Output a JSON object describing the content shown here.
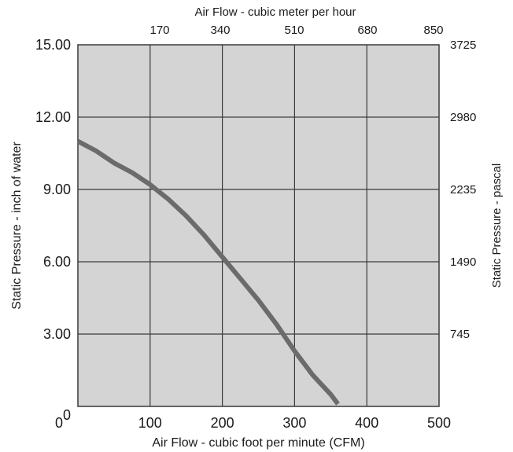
{
  "chart_data": {
    "type": "line",
    "title": "",
    "xlabel": "Air Flow - cubic foot per minute (CFM)",
    "x2label": "Air Flow - cubic meter per hour",
    "ylabel": "Static Pressure - inch of water",
    "y2label": "Static Pressure - pascal",
    "xlim": [
      0,
      500
    ],
    "ylim": [
      0,
      15
    ],
    "grid": true,
    "x_ticks": [
      "0",
      "100",
      "200",
      "300",
      "400",
      "500"
    ],
    "x2_ticks": [
      "170",
      "340",
      "510",
      "680",
      "850"
    ],
    "y_ticks": [
      "0",
      "3.00",
      "6.00",
      "9.00",
      "12.00",
      "15.00"
    ],
    "y2_ticks": [
      "745",
      "1490",
      "2235",
      "2980",
      "3725"
    ],
    "series": [
      {
        "x": [
          0,
          25,
          50,
          75,
          100,
          125,
          150,
          175,
          200,
          225,
          250,
          275,
          300,
          325,
          350,
          360
        ],
        "y": [
          11.0,
          10.6,
          10.1,
          9.7,
          9.2,
          8.6,
          7.9,
          7.1,
          6.2,
          5.3,
          4.4,
          3.4,
          2.3,
          1.3,
          0.5,
          0.1
        ]
      }
    ],
    "colors": {
      "plot_bg": "#d4d4d4",
      "grid": "#3a3a3a",
      "line": "#6b6b6b"
    }
  }
}
